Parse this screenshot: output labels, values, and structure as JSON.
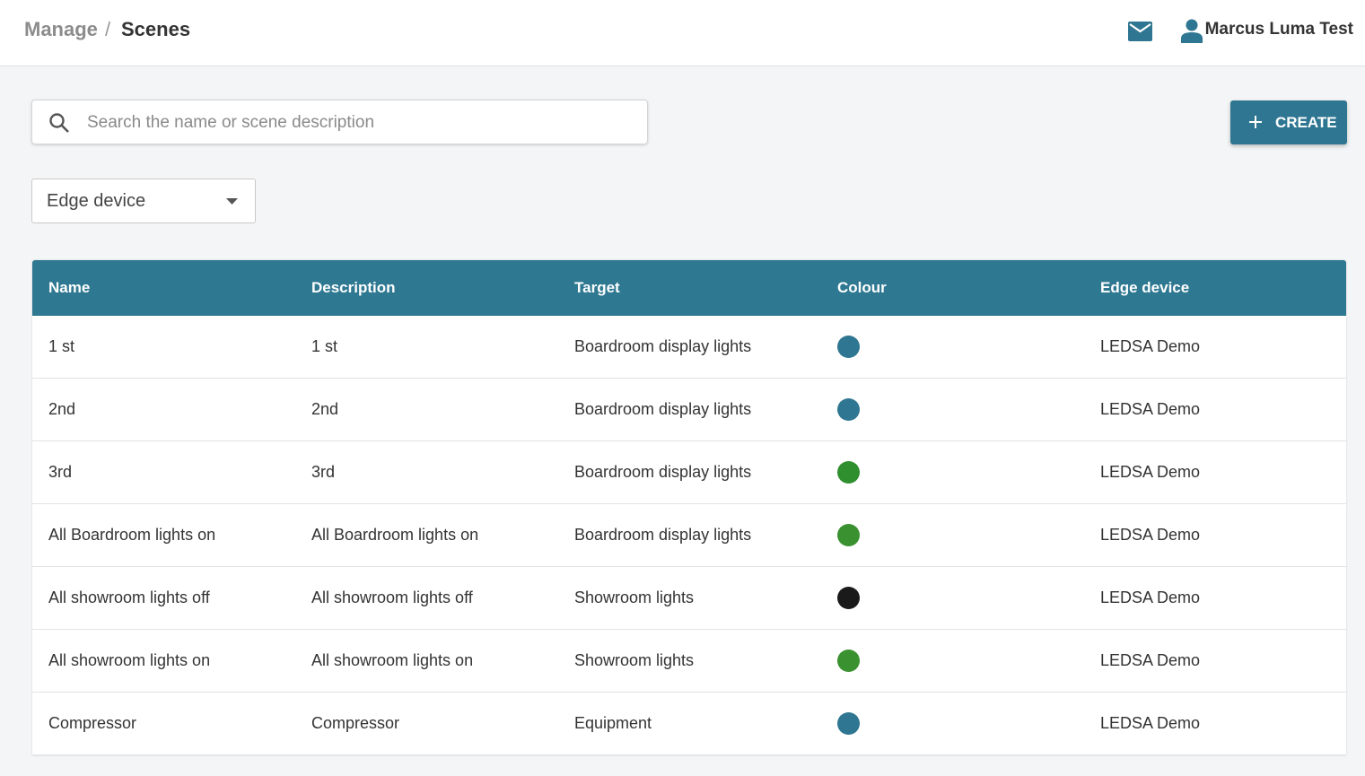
{
  "header": {
    "breadcrumb": [
      "Manage",
      "Scenes"
    ],
    "separator": "/",
    "user_name": "Marcus Luma Test"
  },
  "toolbar": {
    "search_placeholder": "Search the name or scene description",
    "create_button": "CREATE",
    "filter_label": "Edge device"
  },
  "table": {
    "columns": [
      "Name",
      "Description",
      "Target",
      "Colour",
      "Edge device"
    ],
    "rows": [
      {
        "name": "1 st",
        "description": "1 st",
        "target": "Boardroom display lights",
        "colour": "#2e7691",
        "edge_device": "LEDSA Demo"
      },
      {
        "name": "2nd",
        "description": "2nd",
        "target": "Boardroom display lights",
        "colour": "#2e7691",
        "edge_device": "LEDSA Demo"
      },
      {
        "name": "3rd",
        "description": "3rd",
        "target": "Boardroom display lights",
        "colour": "#2f8f2f",
        "edge_device": "LEDSA Demo"
      },
      {
        "name": "All Boardroom lights on",
        "description": "All Boardroom lights on",
        "target": "Boardroom display lights",
        "colour": "#3a9130",
        "edge_device": "LEDSA Demo"
      },
      {
        "name": "All showroom lights off",
        "description": "All showroom lights off",
        "target": "Showroom lights",
        "colour": "#1a1a1a",
        "edge_device": "LEDSA Demo"
      },
      {
        "name": "All showroom lights on",
        "description": "All showroom lights on",
        "target": "Showroom lights",
        "colour": "#3a9130",
        "edge_device": "LEDSA Demo"
      },
      {
        "name": "Compressor",
        "description": "Compressor",
        "target": "Equipment",
        "colour": "#2e7691",
        "edge_device": "LEDSA Demo"
      }
    ]
  }
}
